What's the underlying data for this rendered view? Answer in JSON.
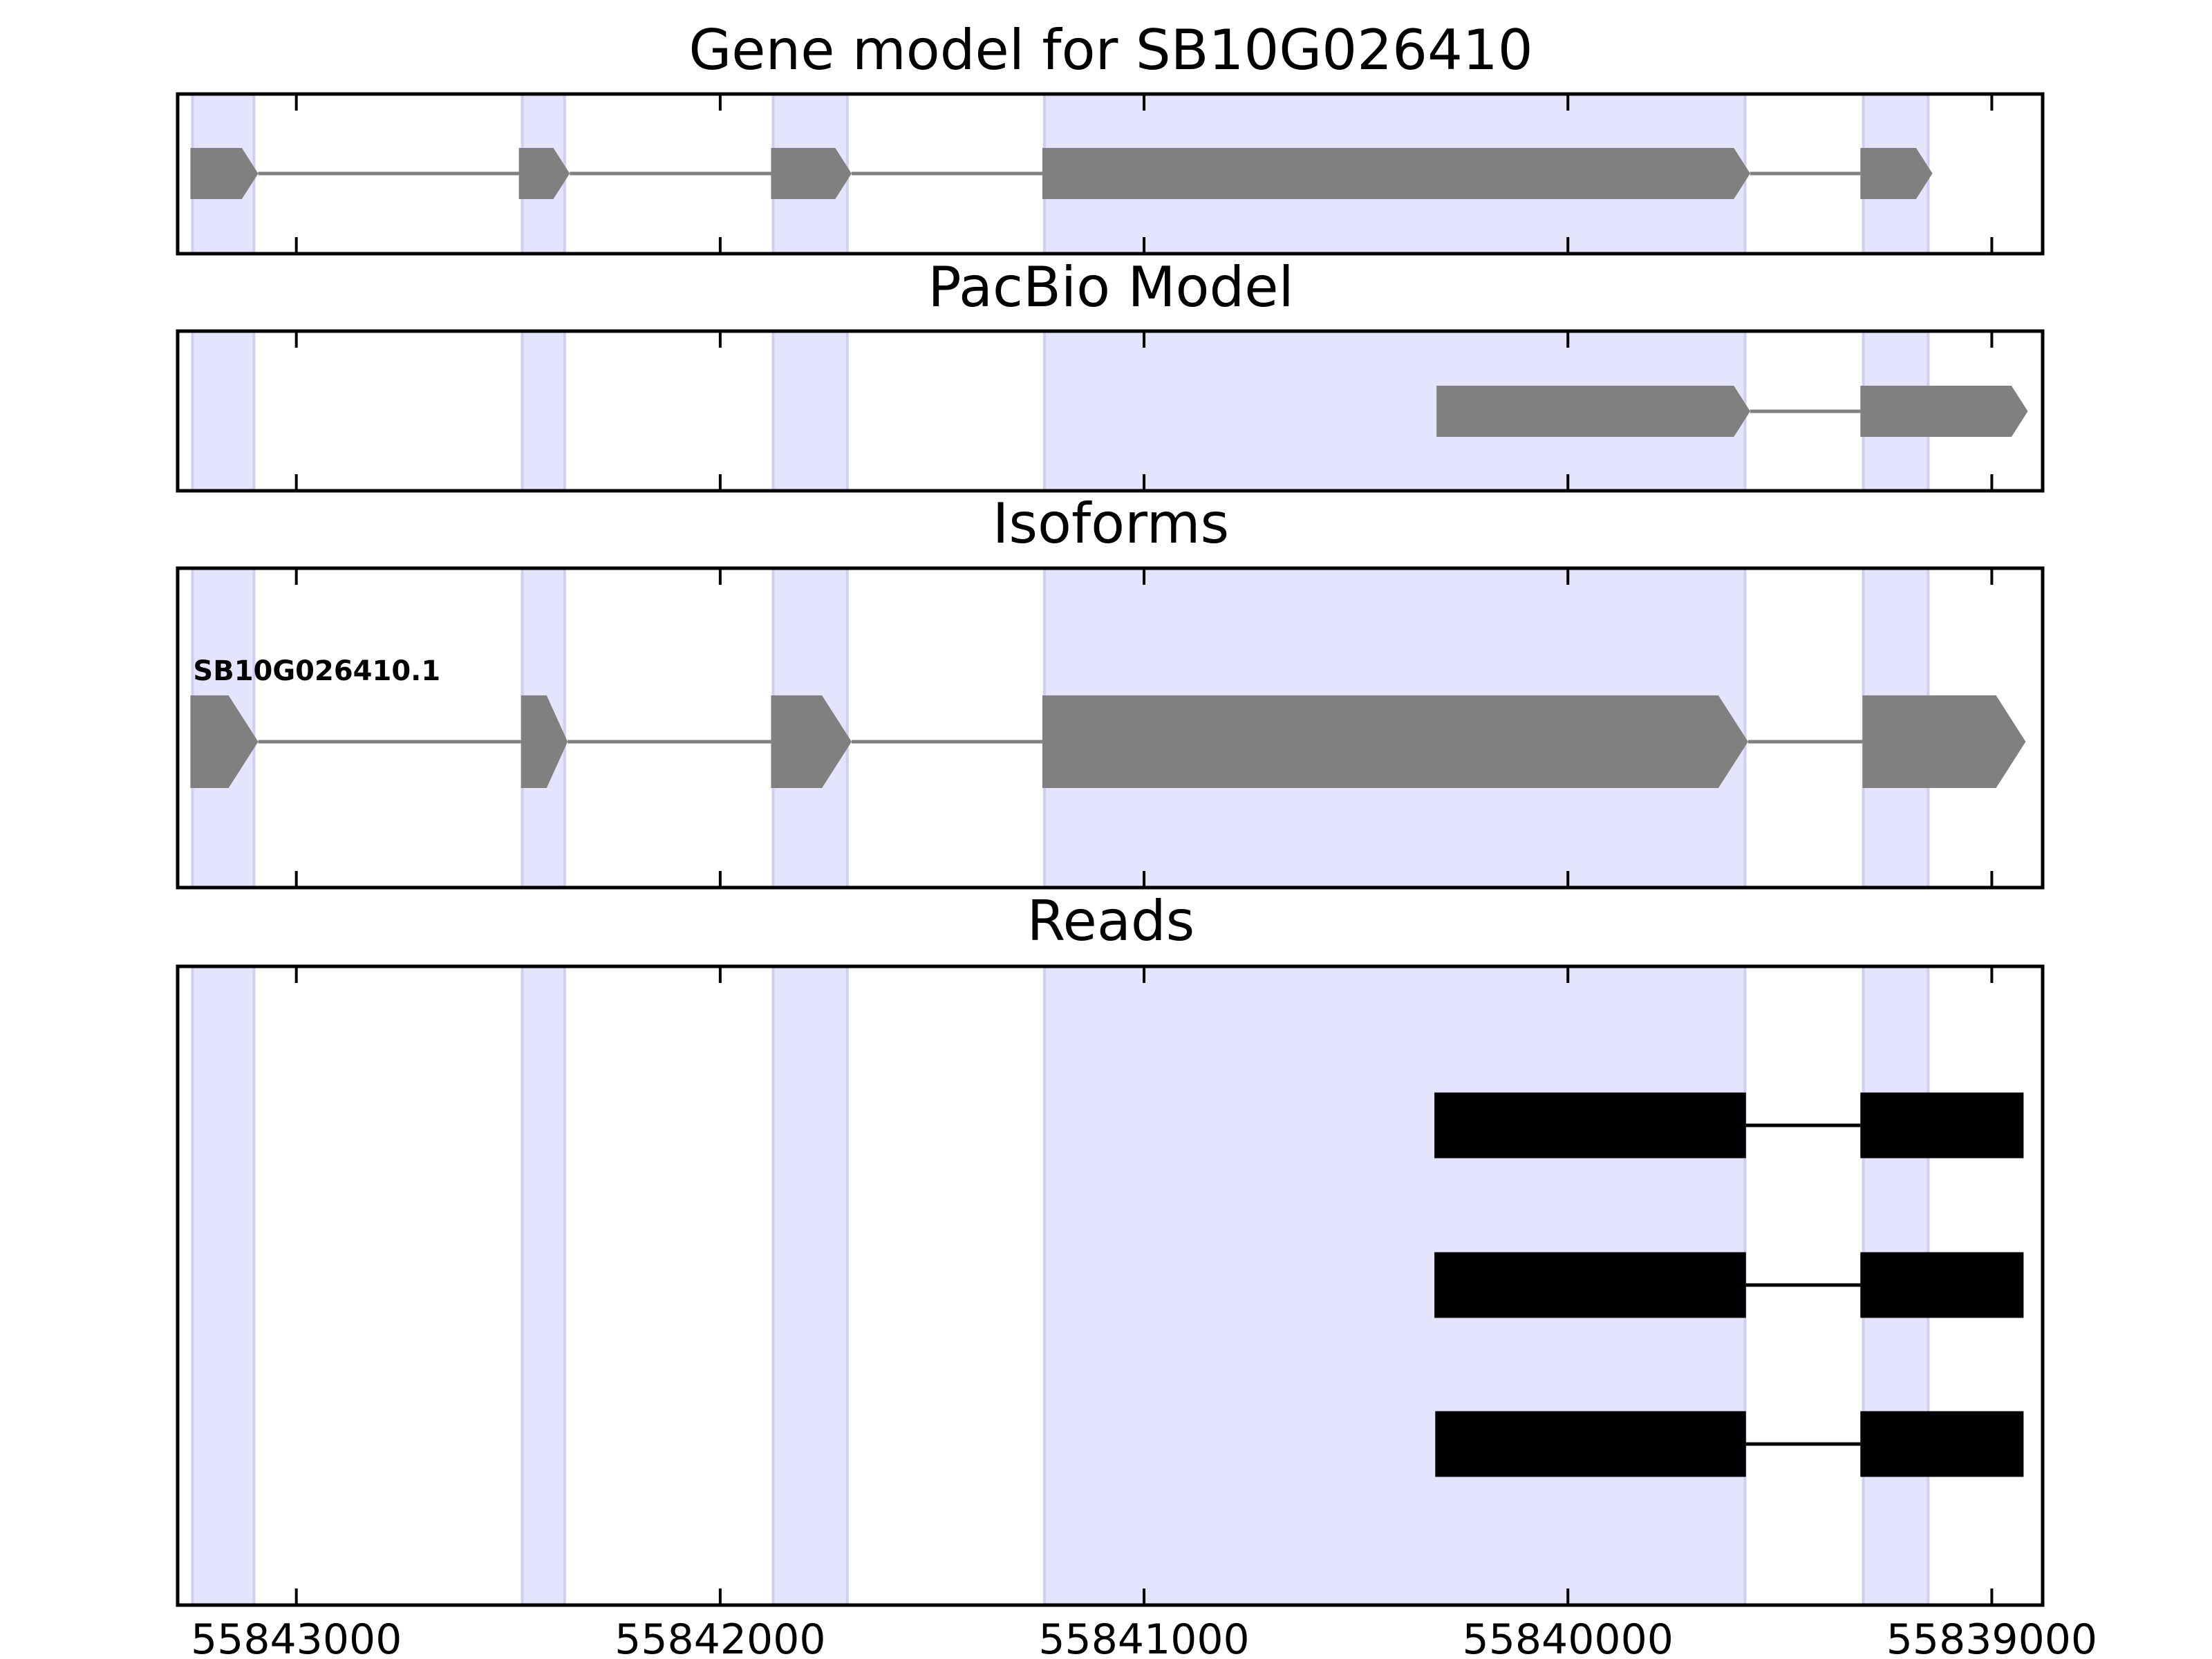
{
  "chart_data": {
    "type": "gene-track",
    "x_axis": {
      "reversed": true,
      "xlim": [
        55843280,
        55838880
      ],
      "ticks": [
        55843000,
        55842000,
        55841000,
        55840000,
        55839000
      ],
      "tick_labels": [
        "55843000",
        "55842000",
        "55841000",
        "55840000",
        "55839000"
      ]
    },
    "highlight_regions": [
      [
        55843245,
        55843100
      ],
      [
        55842467,
        55842367
      ],
      [
        55841875,
        55841700
      ],
      [
        55841235,
        55839582
      ],
      [
        55839303,
        55839150
      ]
    ],
    "colors": {
      "highlight": "#e4e4fc",
      "highlight_edge": "#cfcff2",
      "model": "#808080",
      "read": "#000000",
      "frame": "#000000"
    },
    "panels": [
      {
        "key": "gene_model",
        "title": "Gene model for SB10G026410",
        "rows": [
          {
            "label": "",
            "exons": [
              [
                55843250,
                55843090
              ],
              [
                55842475,
                55842355
              ],
              [
                55841880,
                55841690
              ],
              [
                55841240,
                55839570
              ],
              [
                55839310,
                55839140
              ]
            ]
          }
        ]
      },
      {
        "key": "pacbio_model",
        "title": "PacBio Model",
        "rows": [
          {
            "label": "",
            "exons": [
              [
                55840310,
                55839570
              ],
              [
                55839310,
                55838915
              ]
            ]
          }
        ]
      },
      {
        "key": "isoforms",
        "title": "Isoforms",
        "rows": [
          {
            "label": "SB10G026410.1",
            "exons": [
              [
                55843250,
                55843090
              ],
              [
                55842470,
                55842360
              ],
              [
                55841880,
                55841690
              ],
              [
                55841240,
                55839575
              ],
              [
                55839305,
                55838920
              ]
            ]
          }
        ]
      },
      {
        "key": "reads",
        "title": "Reads",
        "rows": [
          {
            "label": "",
            "exons": [
              [
                55840315,
                55839580
              ],
              [
                55839310,
                55838925
              ]
            ]
          },
          {
            "label": "",
            "exons": [
              [
                55840315,
                55839580
              ],
              [
                55839310,
                55838925
              ]
            ]
          },
          {
            "label": "",
            "exons": [
              [
                55840313,
                55839580
              ],
              [
                55839310,
                55838925
              ]
            ]
          }
        ]
      }
    ]
  }
}
